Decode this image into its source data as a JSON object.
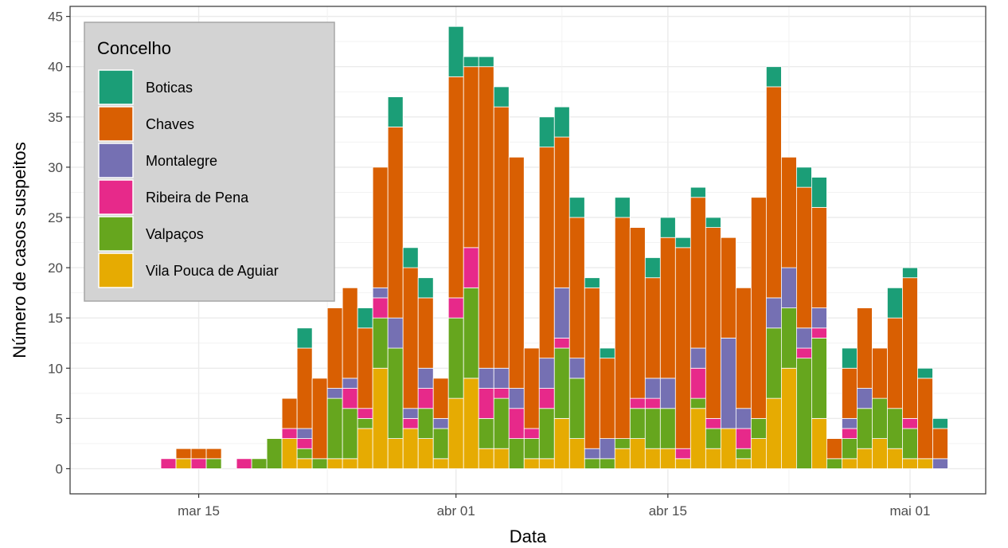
{
  "chart_data": {
    "type": "bar",
    "stacked": true,
    "xlabel": "Data",
    "ylabel": "Número de casos suspeitos",
    "ylim": [
      -2.5,
      46
    ],
    "yticks": [
      0,
      5,
      10,
      15,
      20,
      25,
      30,
      35,
      40,
      45
    ],
    "x_ticks": [
      {
        "date": "2020-03-15",
        "label": "mar 15"
      },
      {
        "date": "2020-04-01",
        "label": "abr 01"
      },
      {
        "date": "2020-04-15",
        "label": "abr 15"
      },
      {
        "date": "2020-05-01",
        "label": "mai 01"
      }
    ],
    "grid": true,
    "legend": {
      "title": "Concelho",
      "position": "top-left"
    },
    "categories": [
      "2020-03-10",
      "2020-03-11",
      "2020-03-12",
      "2020-03-13",
      "2020-03-14",
      "2020-03-15",
      "2020-03-16",
      "2020-03-17",
      "2020-03-18",
      "2020-03-19",
      "2020-03-20",
      "2020-03-21",
      "2020-03-22",
      "2020-03-23",
      "2020-03-24",
      "2020-03-25",
      "2020-03-26",
      "2020-03-27",
      "2020-03-28",
      "2020-03-29",
      "2020-03-30",
      "2020-03-31",
      "2020-04-01",
      "2020-04-02",
      "2020-04-03",
      "2020-04-04",
      "2020-04-05",
      "2020-04-06",
      "2020-04-07",
      "2020-04-08",
      "2020-04-09",
      "2020-04-10",
      "2020-04-11",
      "2020-04-12",
      "2020-04-13",
      "2020-04-14",
      "2020-04-15",
      "2020-04-16",
      "2020-04-17",
      "2020-04-18",
      "2020-04-19",
      "2020-04-20",
      "2020-04-21",
      "2020-04-22",
      "2020-04-23",
      "2020-04-24",
      "2020-04-25",
      "2020-04-26",
      "2020-04-27",
      "2020-04-28",
      "2020-04-29",
      "2020-04-30",
      "2020-05-01",
      "2020-05-02",
      "2020-05-03"
    ],
    "series": [
      {
        "name": "Vila Pouca de Aguiar",
        "color": "#E6AB02",
        "values": [
          0,
          0,
          0,
          0,
          1,
          0,
          0,
          0,
          0,
          0,
          0,
          3,
          1,
          0,
          1,
          1,
          4,
          10,
          3,
          4,
          3,
          1,
          7,
          9,
          2,
          2,
          0,
          1,
          1,
          5,
          3,
          0,
          0,
          2,
          3,
          2,
          2,
          1,
          6,
          2,
          4,
          1,
          3,
          7,
          10,
          0,
          5,
          0,
          1,
          2,
          3,
          2,
          1,
          1,
          0
        ]
      },
      {
        "name": "Valpaços",
        "color": "#66A61E",
        "values": [
          0,
          0,
          0,
          0,
          0,
          0,
          1,
          0,
          0,
          1,
          3,
          0,
          1,
          1,
          6,
          5,
          1,
          5,
          9,
          0,
          3,
          3,
          8,
          9,
          3,
          5,
          3,
          2,
          5,
          7,
          6,
          1,
          1,
          1,
          3,
          4,
          4,
          0,
          1,
          2,
          0,
          1,
          2,
          7,
          6,
          11,
          8,
          1,
          2,
          4,
          4,
          4,
          3,
          0,
          0
        ]
      },
      {
        "name": "Ribeira de Pena",
        "color": "#E7298A",
        "values": [
          0,
          0,
          0,
          1,
          0,
          1,
          0,
          0,
          1,
          0,
          0,
          1,
          1,
          0,
          0,
          2,
          1,
          2,
          0,
          1,
          2,
          0,
          2,
          4,
          3,
          1,
          3,
          1,
          2,
          1,
          0,
          0,
          0,
          0,
          1,
          1,
          0,
          1,
          3,
          1,
          0,
          2,
          0,
          0,
          0,
          1,
          1,
          0,
          1,
          0,
          0,
          0,
          1,
          0,
          0
        ]
      },
      {
        "name": "Montalegre",
        "color": "#7570B3",
        "values": [
          0,
          0,
          0,
          0,
          0,
          0,
          0,
          0,
          0,
          0,
          0,
          0,
          1,
          0,
          1,
          1,
          0,
          1,
          3,
          1,
          2,
          1,
          0,
          0,
          2,
          2,
          2,
          0,
          3,
          5,
          2,
          1,
          2,
          0,
          0,
          2,
          3,
          0,
          2,
          0,
          9,
          2,
          0,
          3,
          4,
          2,
          2,
          0,
          1,
          2,
          0,
          0,
          0,
          0,
          1
        ]
      },
      {
        "name": "Chaves",
        "color": "#D95F02",
        "values": [
          0,
          0,
          0,
          0,
          1,
          1,
          1,
          0,
          0,
          0,
          0,
          3,
          8,
          8,
          8,
          9,
          8,
          12,
          19,
          14,
          7,
          4,
          22,
          18,
          30,
          26,
          23,
          8,
          21,
          15,
          14,
          16,
          8,
          22,
          17,
          10,
          14,
          20,
          15,
          19,
          10,
          12,
          22,
          21,
          11,
          14,
          10,
          2,
          5,
          8,
          5,
          9,
          14,
          8,
          3
        ]
      },
      {
        "name": "Boticas",
        "color": "#1B9E77",
        "values": [
          0,
          0,
          0,
          0,
          0,
          0,
          0,
          0,
          0,
          0,
          0,
          0,
          2,
          0,
          0,
          0,
          2,
          0,
          3,
          2,
          2,
          0,
          5,
          1,
          1,
          2,
          0,
          0,
          3,
          3,
          2,
          1,
          1,
          2,
          0,
          2,
          2,
          1,
          1,
          1,
          0,
          0,
          0,
          2,
          0,
          2,
          3,
          0,
          2,
          0,
          0,
          3,
          1,
          1,
          1
        ]
      }
    ]
  }
}
